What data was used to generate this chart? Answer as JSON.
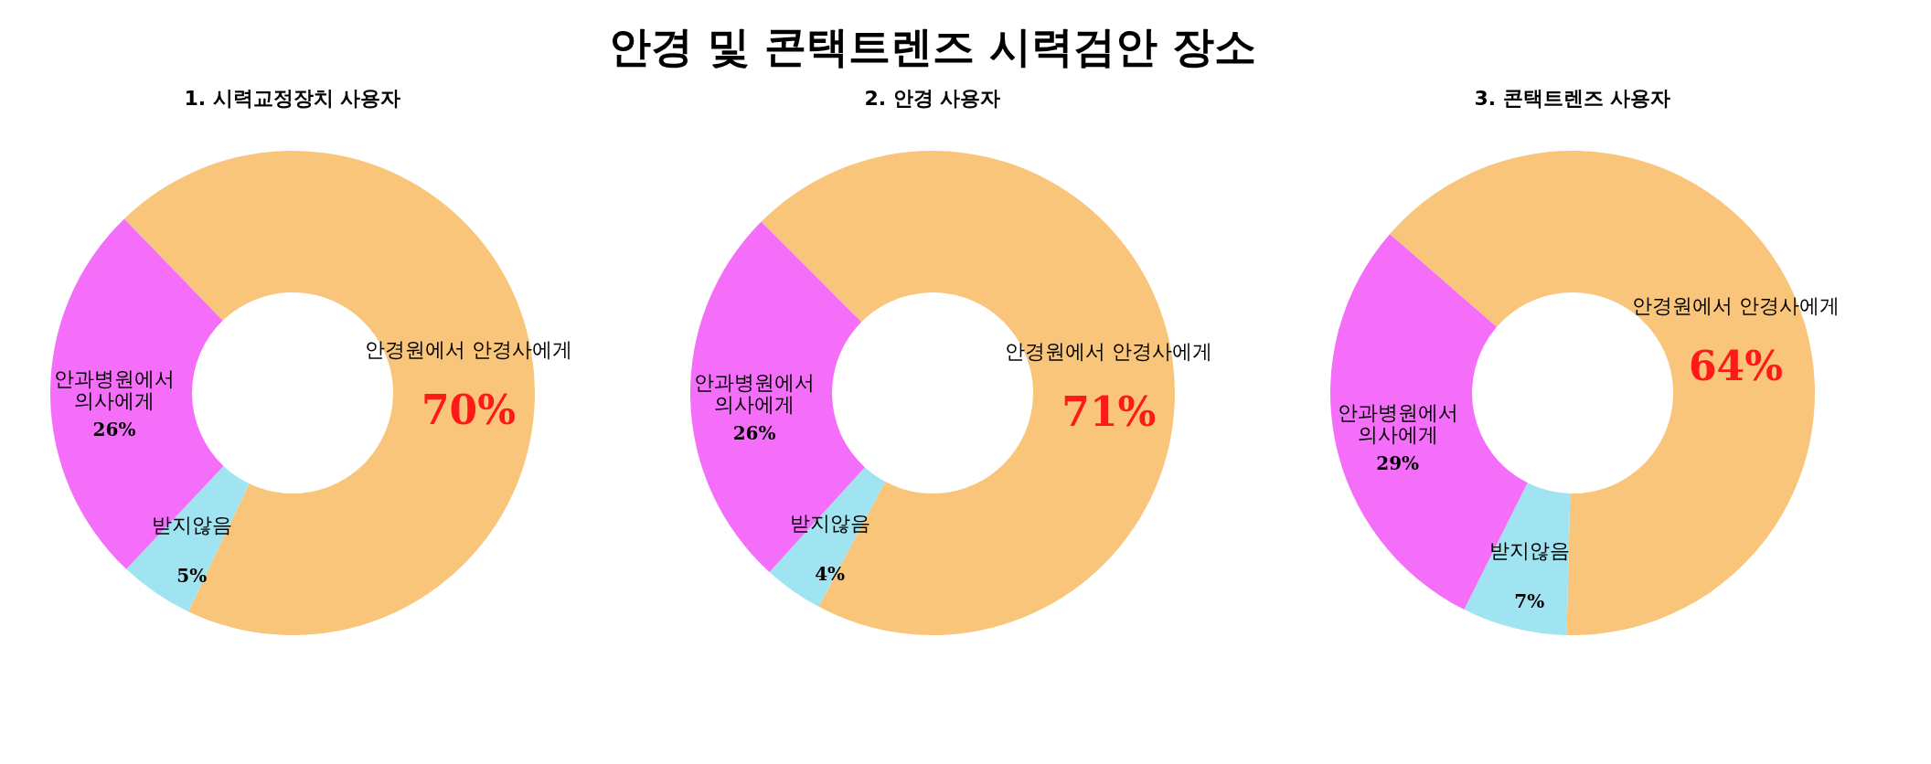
{
  "chart_data": [
    {
      "type": "donut",
      "subtitle": "1. 시력교정장치 사용자",
      "categories": [
        "안경원에서 안경사에게",
        "받지않음",
        "안과병원에서\n의사에게"
      ],
      "values": [
        70,
        5,
        26
      ],
      "colors": [
        "#f9c57a",
        "#9fe4f0",
        "#f46ef9"
      ],
      "value_labels": [
        "70%",
        "5%",
        "26%"
      ]
    },
    {
      "type": "donut",
      "title": "안경 및 콘택트렌즈 시력검안 장소",
      "subtitle": "2. 안경 사용자",
      "categories": [
        "안경원에서 안경사에게",
        "받지않음",
        "안과병원에서\n의사에게"
      ],
      "values": [
        71,
        4,
        26
      ],
      "colors": [
        "#f9c57a",
        "#9fe4f0",
        "#f46ef9"
      ],
      "value_labels": [
        "71%",
        "4%",
        "26%"
      ]
    },
    {
      "type": "donut",
      "subtitle": "3. 콘택트렌즈 사용자",
      "categories": [
        "안경원에서 안경사에게",
        "받지않음",
        "안과병원에서\n의사에게"
      ],
      "values": [
        64,
        7,
        29
      ],
      "colors": [
        "#f9c57a",
        "#9fe4f0",
        "#f46ef9"
      ],
      "value_labels": [
        "64%",
        "7%",
        "29%"
      ]
    }
  ]
}
